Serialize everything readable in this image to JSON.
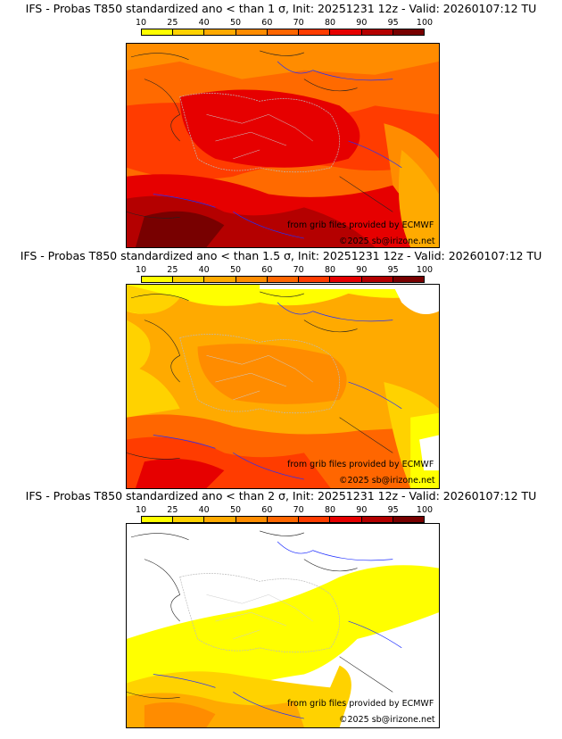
{
  "legend": {
    "ticks": [
      "10",
      "25",
      "40",
      "50",
      "60",
      "70",
      "80",
      "90",
      "95",
      "100"
    ],
    "colors": [
      "#ffff00",
      "#ffd200",
      "#ffaa00",
      "#ff8c00",
      "#ff6600",
      "#ff3c00",
      "#e60000",
      "#b40000",
      "#780000"
    ]
  },
  "panels": [
    {
      "title": "IFS - Probas T850  standardized ano < than 1 σ, Init: 20251231 12z - Valid: 20260107:12 TU"
    },
    {
      "title": "IFS - Probas T850  standardized ano < than 1.5 σ, Init: 20251231 12z - Valid: 20260107:12 TU"
    },
    {
      "title": "IFS - Probas T850  standardized ano < than 2 σ, Init: 20251231 12z - Valid: 20260107:12 TU"
    }
  ],
  "credits": {
    "source": "from grib files provided by ECMWF",
    "copyright": "©2025 sb@irizone.net"
  }
}
